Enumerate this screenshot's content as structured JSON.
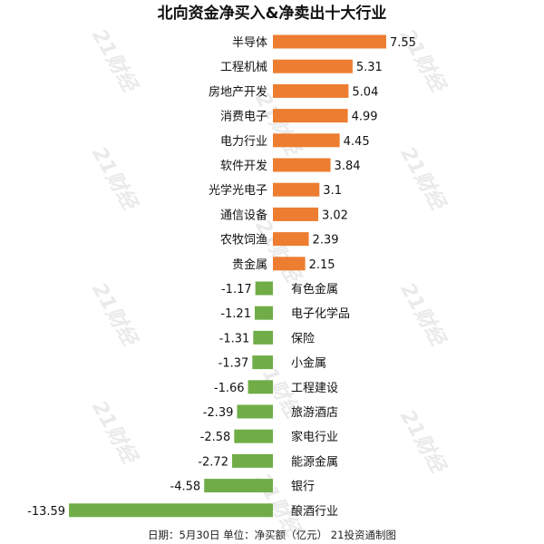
{
  "chart_data": {
    "type": "bar",
    "orientation": "horizontal",
    "title": "北向资金净买入&净卖出十大行业",
    "footer": "日期：5月30日  单位：净买额（亿元）  21投资通制图",
    "watermark": "21财经",
    "colors": {
      "positive": "#ED7D31",
      "negative": "#70AD47"
    },
    "categories": [
      "半导体",
      "工程机械",
      "房地产开发",
      "消费电子",
      "电力行业",
      "软件开发",
      "光学光电子",
      "通信设备",
      "农牧饲渔",
      "贵金属",
      "有色金属",
      "电子化学品",
      "保险",
      "小金属",
      "工程建设",
      "旅游酒店",
      "家电行业",
      "能源金属",
      "银行",
      "酿酒行业"
    ],
    "values": [
      7.55,
      5.31,
      5.04,
      4.99,
      4.45,
      3.84,
      3.1,
      3.02,
      2.39,
      2.15,
      -1.17,
      -1.21,
      -1.31,
      -1.37,
      -1.66,
      -2.39,
      -2.58,
      -2.72,
      -4.58,
      -13.59
    ],
    "xlim": [
      -13.59,
      7.55
    ],
    "grid": false,
    "legend": "none"
  }
}
